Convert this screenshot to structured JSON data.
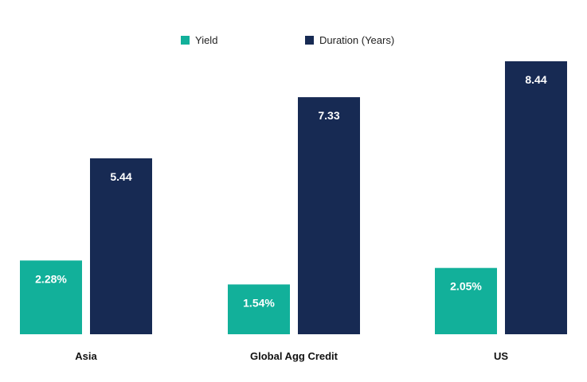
{
  "chart_data": {
    "type": "bar",
    "categories": [
      "Asia",
      "Global Agg Credit",
      "US"
    ],
    "series": [
      {
        "name": "Yield",
        "values": [
          2.28,
          1.54,
          2.05
        ],
        "labels": [
          "2.28%",
          "1.54%",
          "2.05%"
        ],
        "color": "#12b09a"
      },
      {
        "name": "Duration (Years)",
        "values": [
          5.44,
          7.33,
          8.44
        ],
        "labels": [
          "5.44",
          "7.33",
          "8.44"
        ],
        "color": "#172a53"
      }
    ],
    "ylim": [
      0,
      8.44
    ],
    "grid": false,
    "legend": "top-center"
  }
}
